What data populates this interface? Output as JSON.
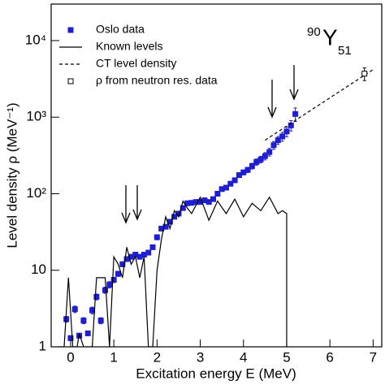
{
  "chart_data": {
    "type": "line",
    "xlabel": "Excitation energy E (MeV)",
    "ylabel": "Level density  ρ  (MeV⁻¹)",
    "annotation": {
      "mass": "90",
      "symbol": "Y",
      "neutrons": "51"
    },
    "xlim": [
      -0.45,
      7.2
    ],
    "ylim": [
      1,
      30000
    ],
    "log_y": true,
    "xticks": [
      0,
      1,
      2,
      3,
      4,
      5,
      6,
      7
    ],
    "yticks": [
      1,
      10,
      {
        "value": 100,
        "label": "10²"
      },
      {
        "value": 1000,
        "label": "10³"
      },
      {
        "value": 10000,
        "label": "10⁴"
      }
    ],
    "legend": "upper left",
    "series": [
      {
        "name": "Oslo data",
        "kind": "points",
        "marker": "filled-square",
        "color": "#1f1fd0",
        "x": [
          -0.1,
          0,
          0.1,
          0.2,
          0.3,
          0.4,
          0.5,
          0.6,
          0.7,
          0.8,
          0.9,
          1.0,
          1.1,
          1.2,
          1.3,
          1.4,
          1.5,
          1.6,
          1.7,
          1.8,
          1.9,
          2.0,
          2.1,
          2.2,
          2.3,
          2.4,
          2.5,
          2.6,
          2.7,
          2.8,
          2.9,
          3.0,
          3.1,
          3.2,
          3.3,
          3.4,
          3.5,
          3.6,
          3.7,
          3.8,
          3.9,
          4.0,
          4.1,
          4.2,
          4.3,
          4.4,
          4.5,
          4.6,
          4.7,
          4.8,
          4.9,
          5.0,
          5.1,
          5.2
        ],
        "values": [
          2.3,
          1.3,
          3.1,
          1.4,
          2.2,
          1.5,
          3.0,
          4.5,
          2.2,
          5.5,
          6.5,
          7.5,
          9,
          12,
          14,
          15,
          16,
          15,
          16,
          17,
          20,
          27,
          35,
          37,
          43,
          50,
          55,
          65,
          75,
          76,
          78,
          78,
          82,
          78,
          85,
          100,
          115,
          120,
          135,
          150,
          175,
          190,
          205,
          230,
          260,
          280,
          310,
          350,
          430,
          500,
          560,
          650,
          780,
          1100
        ],
        "errors": [
          0.2,
          0.1,
          0.3,
          0.1,
          0.2,
          0.1,
          0.3,
          0.4,
          0.2,
          0.5,
          0.6,
          0.6,
          0.7,
          0.9,
          1,
          1,
          1,
          1,
          1,
          1,
          1,
          2,
          2,
          2,
          3,
          3,
          3,
          4,
          4,
          4,
          4,
          4,
          5,
          5,
          5,
          6,
          7,
          8,
          9,
          10,
          12,
          14,
          16,
          20,
          24,
          28,
          34,
          40,
          50,
          60,
          75,
          95,
          120,
          220
        ]
      },
      {
        "name": "Known levels",
        "kind": "line",
        "style": "solid",
        "color": "#000000",
        "x": [
          -0.3,
          -0.15,
          -0.05,
          0.05,
          0.15,
          0.2,
          0.3,
          0.5,
          0.6,
          0.7,
          0.8,
          0.9,
          1.0,
          1.1,
          1.2,
          1.3,
          1.4,
          1.5,
          1.6,
          1.7,
          1.8,
          1.9,
          2.0,
          2.1,
          2.2,
          2.3,
          2.4,
          2.5,
          2.6,
          2.7,
          2.8,
          3.0,
          3.2,
          3.4,
          3.6,
          3.8,
          4.0,
          4.2,
          4.4,
          4.6,
          4.8,
          4.9,
          5.0,
          5.0
        ],
        "values": [
          1,
          1,
          8,
          1,
          1,
          1.5,
          1,
          1,
          8,
          8,
          8,
          1,
          15,
          12,
          8,
          20,
          12,
          15,
          8,
          15,
          1,
          1,
          10,
          25,
          50,
          35,
          60,
          50,
          80,
          65,
          55,
          90,
          45,
          80,
          55,
          85,
          50,
          75,
          60,
          90,
          55,
          60,
          55,
          1
        ]
      },
      {
        "name": "CT level density",
        "kind": "line",
        "style": "dashed",
        "color": "#000000",
        "x": [
          4.5,
          7.0
        ],
        "values": [
          500,
          4180
        ]
      },
      {
        "name": "ρ from neutron res. data",
        "kind": "points",
        "marker": "open-square",
        "color": "#000000",
        "x": [
          6.8
        ],
        "values": [
          3700
        ],
        "errors": [
          700
        ]
      }
    ]
  }
}
